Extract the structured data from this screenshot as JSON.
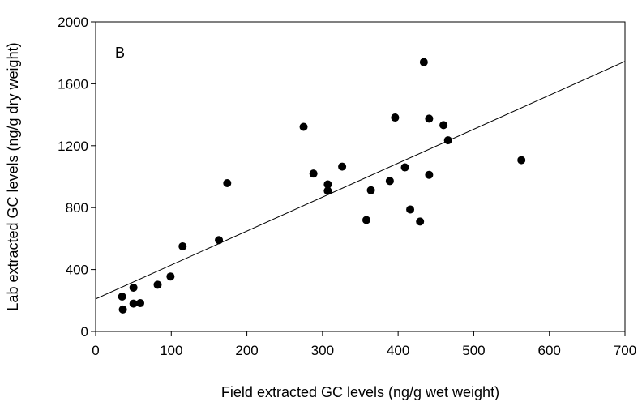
{
  "chart_data": {
    "type": "scatter",
    "panel_label": "B",
    "title": "",
    "xlabel": "Field extracted GC levels (ng/g wet weight)",
    "ylabel": "Lab extracted GC levels (ng/g dry weight)",
    "xlim": [
      0,
      700
    ],
    "ylim": [
      0,
      2000
    ],
    "xticks": [
      0,
      100,
      200,
      300,
      400,
      500,
      600,
      700
    ],
    "yticks": [
      0,
      400,
      800,
      1200,
      1600,
      2000
    ],
    "grid": false,
    "legend": "none",
    "series": [
      {
        "points": [
          {
            "x": 35,
            "y": 225
          },
          {
            "x": 36,
            "y": 142
          },
          {
            "x": 50,
            "y": 283
          },
          {
            "x": 50,
            "y": 180
          },
          {
            "x": 59,
            "y": 183
          },
          {
            "x": 82,
            "y": 302
          },
          {
            "x": 99,
            "y": 355
          },
          {
            "x": 115,
            "y": 550
          },
          {
            "x": 163,
            "y": 590
          },
          {
            "x": 174,
            "y": 958
          },
          {
            "x": 275,
            "y": 1322
          },
          {
            "x": 288,
            "y": 1020
          },
          {
            "x": 307,
            "y": 950
          },
          {
            "x": 307,
            "y": 908
          },
          {
            "x": 326,
            "y": 1065
          },
          {
            "x": 358,
            "y": 720
          },
          {
            "x": 364,
            "y": 912
          },
          {
            "x": 389,
            "y": 972
          },
          {
            "x": 396,
            "y": 1382
          },
          {
            "x": 409,
            "y": 1060
          },
          {
            "x": 416,
            "y": 788
          },
          {
            "x": 429,
            "y": 710
          },
          {
            "x": 434,
            "y": 1740
          },
          {
            "x": 441,
            "y": 1375
          },
          {
            "x": 441,
            "y": 1012
          },
          {
            "x": 460,
            "y": 1333
          },
          {
            "x": 466,
            "y": 1235
          },
          {
            "x": 563,
            "y": 1107
          }
        ],
        "color": "#000000"
      }
    ],
    "trendline": {
      "x": [
        0,
        700
      ],
      "y": [
        210,
        1745
      ],
      "color": "#000000"
    }
  }
}
